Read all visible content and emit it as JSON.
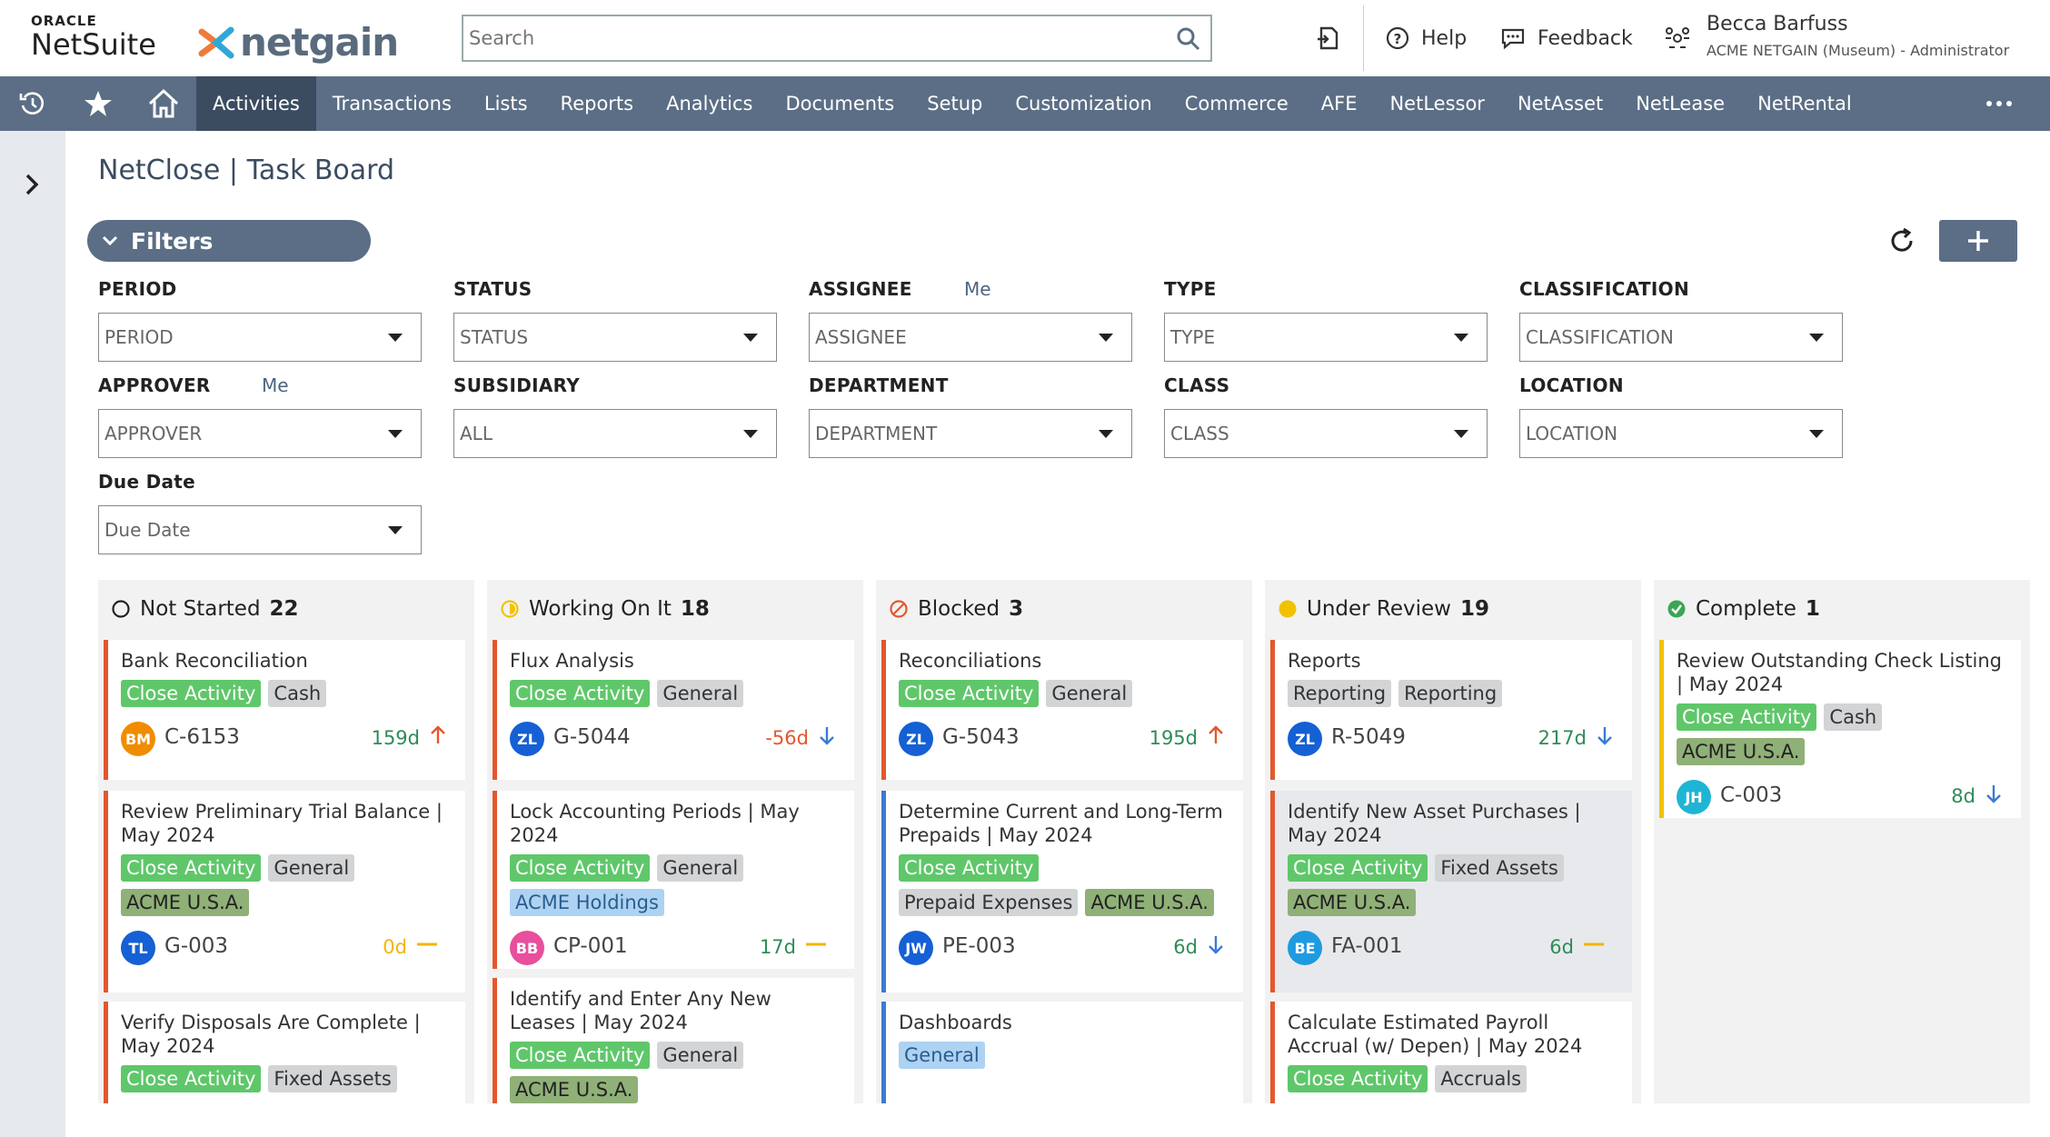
{
  "topbar": {
    "oracle": "ORACLE",
    "netsuite": "NetSuite",
    "netgain": "netgain",
    "search_placeholder": "Search",
    "help": "Help",
    "feedback": "Feedback",
    "user_name": "Becca Barfuss",
    "user_role": "ACME NETGAIN (Museum) - Administrator"
  },
  "nav": {
    "items": [
      "Activities",
      "Transactions",
      "Lists",
      "Reports",
      "Analytics",
      "Documents",
      "Setup",
      "Customization",
      "Commerce",
      "AFE",
      "NetLessor",
      "NetAsset",
      "NetLease",
      "NetRental"
    ],
    "active": "Activities"
  },
  "page": {
    "title": "NetClose | Task Board",
    "filters_label": "Filters"
  },
  "filters": {
    "period": {
      "label": "PERIOD",
      "value": "PERIOD"
    },
    "status": {
      "label": "STATUS",
      "value": "STATUS"
    },
    "assignee": {
      "label": "ASSIGNEE",
      "me": "Me",
      "value": "ASSIGNEE"
    },
    "type": {
      "label": "TYPE",
      "value": "TYPE"
    },
    "classification": {
      "label": "CLASSIFICATION",
      "value": "CLASSIFICATION"
    },
    "approver": {
      "label": "APPROVER",
      "me": "Me",
      "value": "APPROVER"
    },
    "subsidiary": {
      "label": "SUBSIDIARY",
      "value": "ALL"
    },
    "department": {
      "label": "DEPARTMENT",
      "value": "DEPARTMENT"
    },
    "class": {
      "label": "CLASS",
      "value": "CLASS"
    },
    "location": {
      "label": "LOCATION",
      "value": "LOCATION"
    },
    "due_date": {
      "label": "Due Date",
      "value": "Due Date"
    }
  },
  "columns": [
    {
      "name": "Not Started",
      "count": "22",
      "status_color": "#222222",
      "cards": [
        {
          "title": "Bank Reconciliation",
          "tags": [
            {
              "t": "Close Activity",
              "c": "green"
            },
            {
              "t": "Cash",
              "c": "gray"
            }
          ],
          "avatar": "BM",
          "avatar_color": "#f08c00",
          "id": "C-6153",
          "days": "159d",
          "days_color": "#2e8b57",
          "arrow": "up",
          "arrow_color": "#e4572e"
        },
        {
          "title": "Review Preliminary Trial Balance | May 2024",
          "tags": [
            {
              "t": "Close Activity",
              "c": "green"
            },
            {
              "t": "General",
              "c": "gray"
            },
            {
              "t": "ACME U.S.A.",
              "c": "olive"
            }
          ],
          "avatar": "TL",
          "avatar_color": "#1560d4",
          "id": "G-003",
          "days": "0d",
          "days_color": "#f2b600",
          "arrow": "flat",
          "arrow_color": "#f2b600"
        },
        {
          "title": "Verify Disposals Are Complete | May 2024",
          "tags": [
            {
              "t": "Close Activity",
              "c": "green"
            },
            {
              "t": "Fixed Assets",
              "c": "gray"
            }
          ]
        }
      ]
    },
    {
      "name": "Working On It",
      "count": "18",
      "status_color": "#f2c200",
      "cards": [
        {
          "title": "Flux Analysis",
          "tags": [
            {
              "t": "Close Activity",
              "c": "green"
            },
            {
              "t": "General",
              "c": "gray"
            }
          ],
          "avatar": "ZL",
          "avatar_color": "#1560d4",
          "id": "G-5044",
          "days": "-56d",
          "days_color": "#e4572e",
          "arrow": "down",
          "arrow_color": "#3a7bd5"
        },
        {
          "title": "Lock Accounting Periods | May 2024",
          "tags": [
            {
              "t": "Close Activity",
              "c": "green"
            },
            {
              "t": "General",
              "c": "gray"
            },
            {
              "t": "ACME Holdings",
              "c": "blue"
            }
          ],
          "avatar": "BB",
          "avatar_color": "#e84f9c",
          "id": "CP-001",
          "days": "17d",
          "days_color": "#2e8b57",
          "arrow": "flat",
          "arrow_color": "#f2b600"
        },
        {
          "title": "Identify and Enter Any New Leases | May 2024",
          "tags": [
            {
              "t": "Close Activity",
              "c": "green"
            },
            {
              "t": "General",
              "c": "gray"
            },
            {
              "t": "ACME U.S.A.",
              "c": "olive"
            }
          ]
        }
      ]
    },
    {
      "name": "Blocked",
      "count": "3",
      "status_color": "#e4572e",
      "cards": [
        {
          "title": "Reconciliations",
          "tags": [
            {
              "t": "Close Activity",
              "c": "green"
            },
            {
              "t": "General",
              "c": "gray"
            }
          ],
          "avatar": "ZL",
          "avatar_color": "#1560d4",
          "id": "G-5043",
          "days": "195d",
          "days_color": "#2e8b57",
          "arrow": "up",
          "arrow_color": "#e4572e"
        },
        {
          "title": "Determine Current and Long-Term Prepaids | May 2024",
          "tags": [
            {
              "t": "Close Activity",
              "c": "green"
            },
            {
              "t": "Prepaid Expenses",
              "c": "gray"
            },
            {
              "t": "ACME U.S.A.",
              "c": "olive"
            }
          ],
          "avatar": "JW",
          "avatar_color": "#1560d4",
          "id": "PE-003",
          "days": "6d",
          "days_color": "#2e8b57",
          "arrow": "down",
          "arrow_color": "#3a7bd5"
        },
        {
          "title": "Dashboards",
          "tags": [
            {
              "t": "General",
              "c": "blue"
            }
          ]
        }
      ]
    },
    {
      "name": "Under Review",
      "count": "19",
      "status_color": "#f2c200",
      "cards": [
        {
          "title": "Reports",
          "tags": [
            {
              "t": "Reporting",
              "c": "gray"
            },
            {
              "t": "Reporting",
              "c": "gray"
            }
          ],
          "avatar": "ZL",
          "avatar_color": "#1560d4",
          "id": "R-5049",
          "days": "217d",
          "days_color": "#2e8b57",
          "arrow": "down",
          "arrow_color": "#3a7bd5"
        },
        {
          "title": "Identify New Asset Purchases | May 2024",
          "tags": [
            {
              "t": "Close Activity",
              "c": "green"
            },
            {
              "t": "Fixed Assets",
              "c": "gray"
            },
            {
              "t": "ACME U.S.A.",
              "c": "olive"
            }
          ],
          "avatar": "BE",
          "avatar_color": "#1e9be0",
          "id": "FA-001",
          "days": "6d",
          "days_color": "#2e8b57",
          "arrow": "flat",
          "arrow_color": "#f2b600"
        },
        {
          "title": "Calculate Estimated Payroll Accrual (w/ Depen) | May 2024",
          "tags": [
            {
              "t": "Close Activity",
              "c": "green"
            },
            {
              "t": "Accruals",
              "c": "gray"
            }
          ]
        }
      ]
    },
    {
      "name": "Complete",
      "count": "1",
      "status_color": "#3aa655",
      "cards": [
        {
          "title": "Review Outstanding Check Listing | May 2024",
          "tags": [
            {
              "t": "Close Activity",
              "c": "green"
            },
            {
              "t": "Cash",
              "c": "gray"
            },
            {
              "t": "ACME U.S.A.",
              "c": "olive"
            }
          ],
          "avatar": "JH",
          "avatar_color": "#1eb5d4",
          "id": "C-003",
          "days": "8d",
          "days_color": "#2e8b57",
          "arrow": "down",
          "arrow_color": "#3a7bd5"
        }
      ]
    }
  ]
}
